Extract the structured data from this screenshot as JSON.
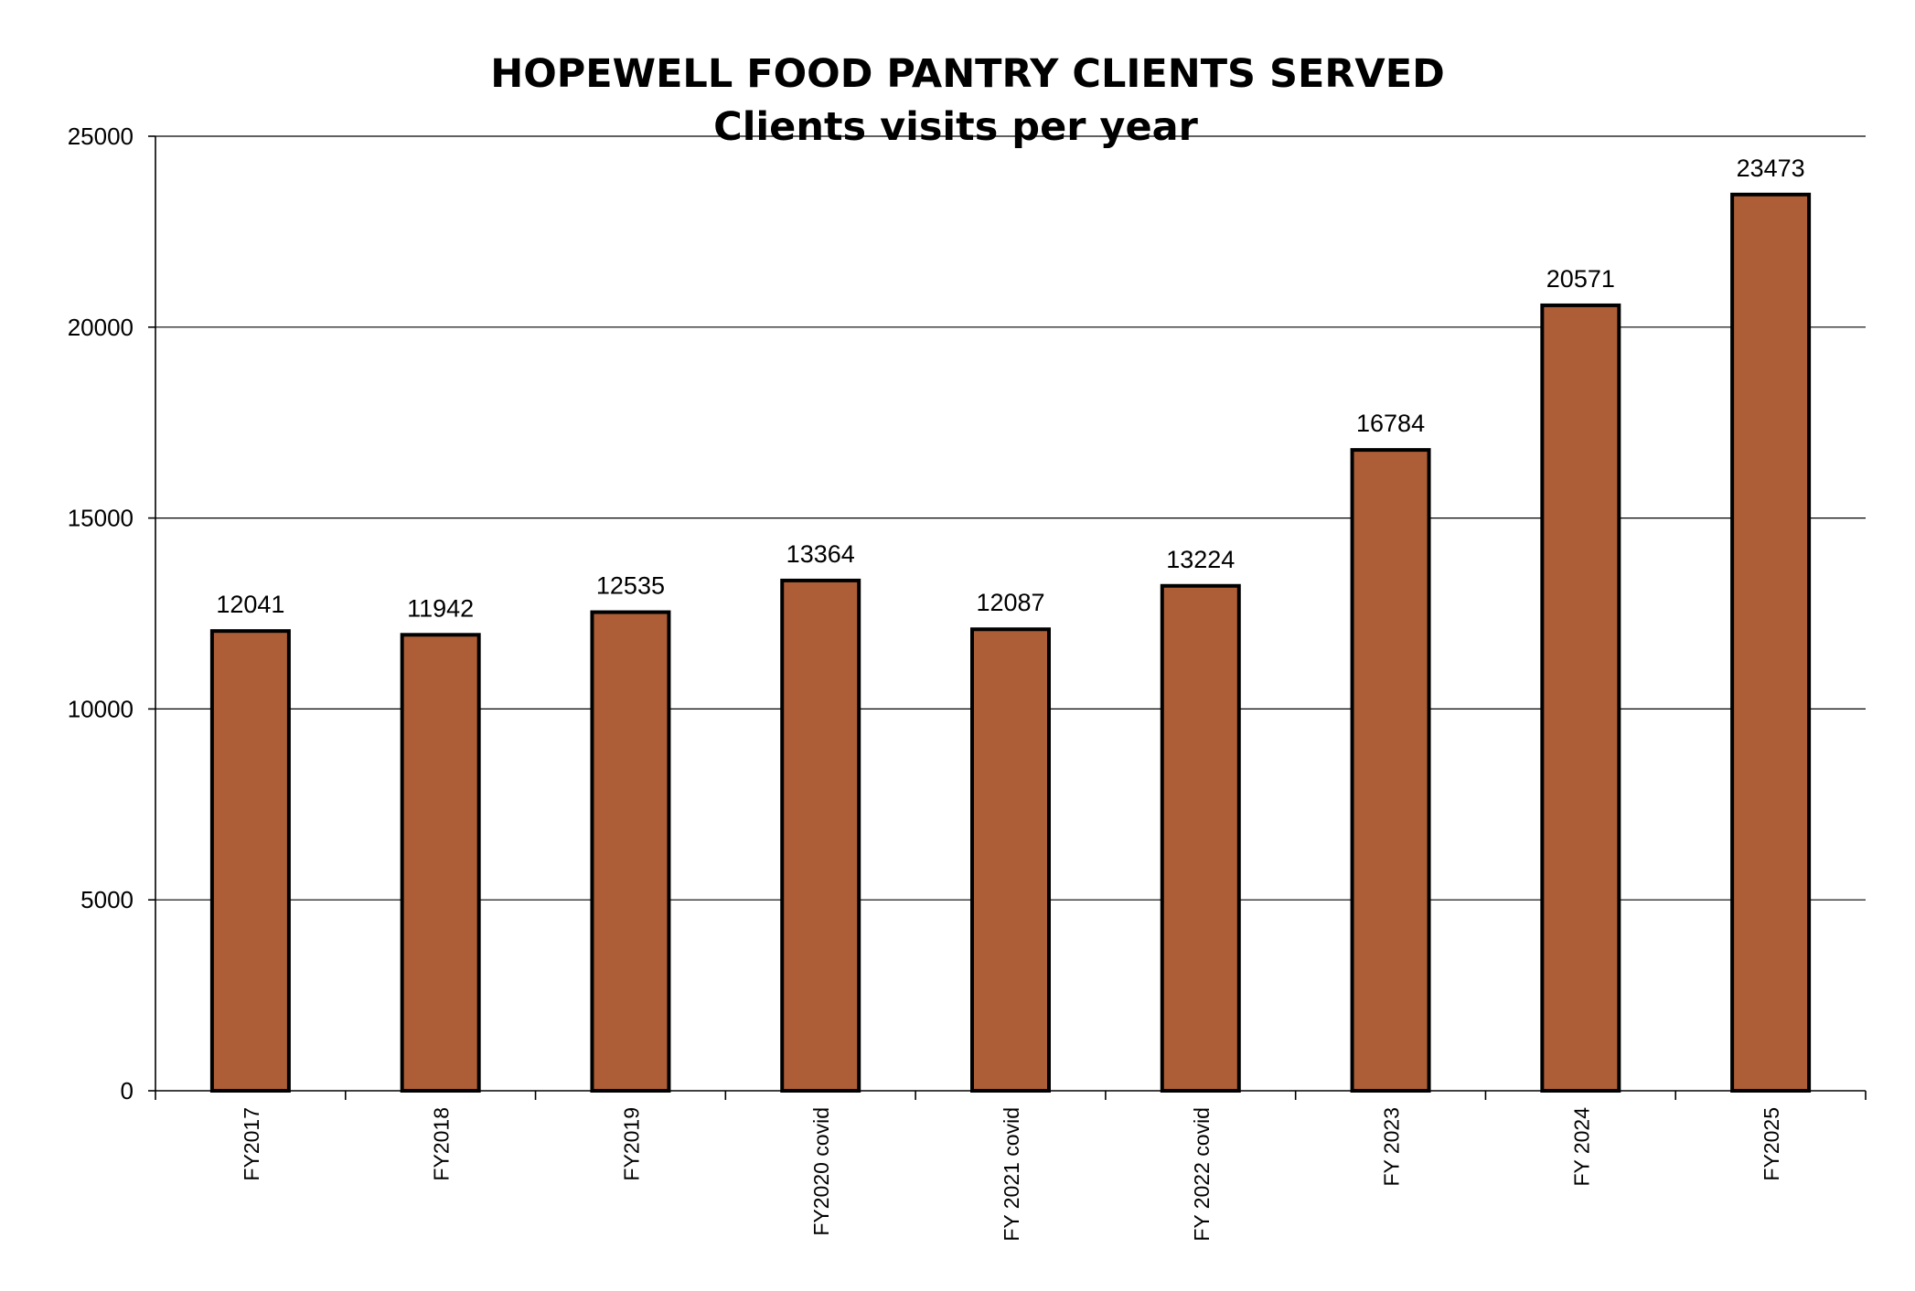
{
  "chart_data": {
    "type": "bar",
    "title": "HOPEWELL FOOD PANTRY CLIENTS SERVED",
    "subtitle": "Clients visits per year",
    "categories": [
      "FY2017",
      "FY2018",
      "FY2019",
      "FY2020 covid",
      "FY 2021 covid",
      "FY 2022 covid",
      "FY 2023",
      "FY 2024",
      "FY2025"
    ],
    "values": [
      12041,
      11942,
      12535,
      13364,
      12087,
      13224,
      16784,
      20571,
      23473
    ],
    "data_labels": [
      "12041",
      "11942",
      "12535",
      "13364",
      "12087",
      "13224",
      "16784",
      "20571",
      "23473"
    ],
    "ylim": [
      0,
      25000
    ],
    "yticks": [
      0,
      5000,
      10000,
      15000,
      20000,
      25000
    ],
    "ytick_labels": [
      "0",
      "5000",
      "10000",
      "15000",
      "20000",
      "25000"
    ],
    "grid": true,
    "legend": "none",
    "bar_color": "#ad5e36"
  }
}
